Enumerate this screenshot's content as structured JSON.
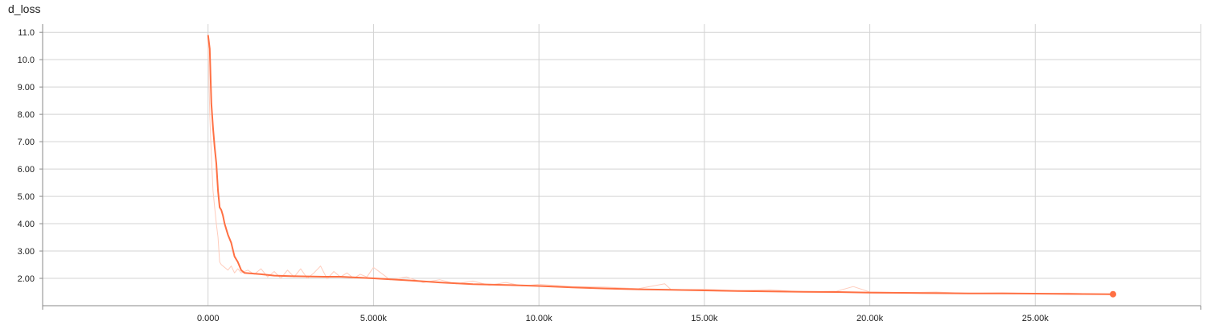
{
  "chart_title": "d_loss",
  "colors": {
    "line": "#ff7043",
    "raw": "#ffccbc",
    "grid": "#d3d3d3",
    "axis": "#8a8a8a"
  },
  "chart_data": {
    "type": "line",
    "title": "d_loss",
    "xlabel": "",
    "ylabel": "",
    "xlim": [
      -5000,
      30000
    ],
    "ylim": [
      1.0,
      11.3
    ],
    "x_ticks": [
      0,
      5000,
      10000,
      15000,
      20000,
      25000
    ],
    "x_tick_labels": [
      "0.000",
      "5.000k",
      "10.00k",
      "15.00k",
      "20.00k",
      "25.00k"
    ],
    "y_ticks": [
      2,
      3,
      4,
      5,
      6,
      7,
      8,
      9,
      10,
      11
    ],
    "y_tick_labels": [
      "2.00",
      "3.00",
      "4.00",
      "5.00",
      "6.00",
      "7.00",
      "8.00",
      "9.00",
      "10.0",
      "11.0"
    ],
    "grid": true,
    "series": [
      {
        "role": "smoothed",
        "x": [
          0,
          50,
          100,
          150,
          200,
          250,
          300,
          350,
          400,
          450,
          500,
          600,
          700,
          800,
          900,
          1000,
          1100,
          1300,
          1600,
          2000,
          2500,
          3000,
          3500,
          4000,
          4500,
          5000,
          6000,
          7000,
          8000,
          9000,
          10000,
          11000,
          12000,
          13000,
          14000,
          15000,
          16000,
          17000,
          18000,
          19000,
          20000,
          21000,
          22000,
          23000,
          24000,
          25000,
          26000,
          27350
        ],
        "y": [
          10.9,
          10.4,
          8.4,
          7.5,
          6.8,
          6.2,
          5.2,
          4.6,
          4.5,
          4.3,
          4.0,
          3.6,
          3.3,
          2.8,
          2.6,
          2.3,
          2.2,
          2.18,
          2.15,
          2.1,
          2.08,
          2.07,
          2.06,
          2.06,
          2.03,
          2.0,
          1.93,
          1.85,
          1.79,
          1.76,
          1.72,
          1.67,
          1.63,
          1.6,
          1.58,
          1.56,
          1.54,
          1.52,
          1.51,
          1.5,
          1.48,
          1.47,
          1.46,
          1.45,
          1.45,
          1.44,
          1.43,
          1.42
        ]
      },
      {
        "role": "raw",
        "x": [
          0,
          50,
          100,
          150,
          200,
          250,
          300,
          350,
          400,
          500,
          600,
          700,
          800,
          900,
          1000,
          1200,
          1400,
          1600,
          1800,
          2000,
          2200,
          2400,
          2600,
          2800,
          3000,
          3200,
          3400,
          3600,
          3800,
          4000,
          4200,
          4400,
          4600,
          4800,
          5000,
          5500,
          6000,
          6500,
          7000,
          7500,
          8000,
          8500,
          9000,
          9500,
          10000,
          11000,
          12000,
          13000,
          13800,
          14000,
          15000,
          16000,
          17000,
          18000,
          19000,
          19500,
          20000,
          21000,
          22000,
          23000,
          24000,
          25000,
          26000,
          27000,
          27350
        ],
        "y": [
          10.9,
          8.0,
          6.5,
          5.2,
          4.6,
          4.0,
          3.5,
          2.6,
          2.5,
          2.4,
          2.3,
          2.45,
          2.2,
          2.35,
          2.2,
          2.3,
          2.15,
          2.35,
          2.05,
          2.25,
          2.0,
          2.3,
          2.05,
          2.35,
          2.0,
          2.2,
          2.45,
          1.98,
          2.25,
          2.05,
          2.2,
          2.0,
          2.15,
          2.05,
          2.4,
          1.95,
          2.05,
          1.85,
          1.95,
          1.8,
          1.9,
          1.75,
          1.85,
          1.72,
          1.78,
          1.7,
          1.68,
          1.62,
          1.8,
          1.58,
          1.6,
          1.55,
          1.58,
          1.5,
          1.53,
          1.7,
          1.5,
          1.48,
          1.5,
          1.45,
          1.47,
          1.44,
          1.46,
          1.42,
          1.4
        ]
      }
    ]
  }
}
